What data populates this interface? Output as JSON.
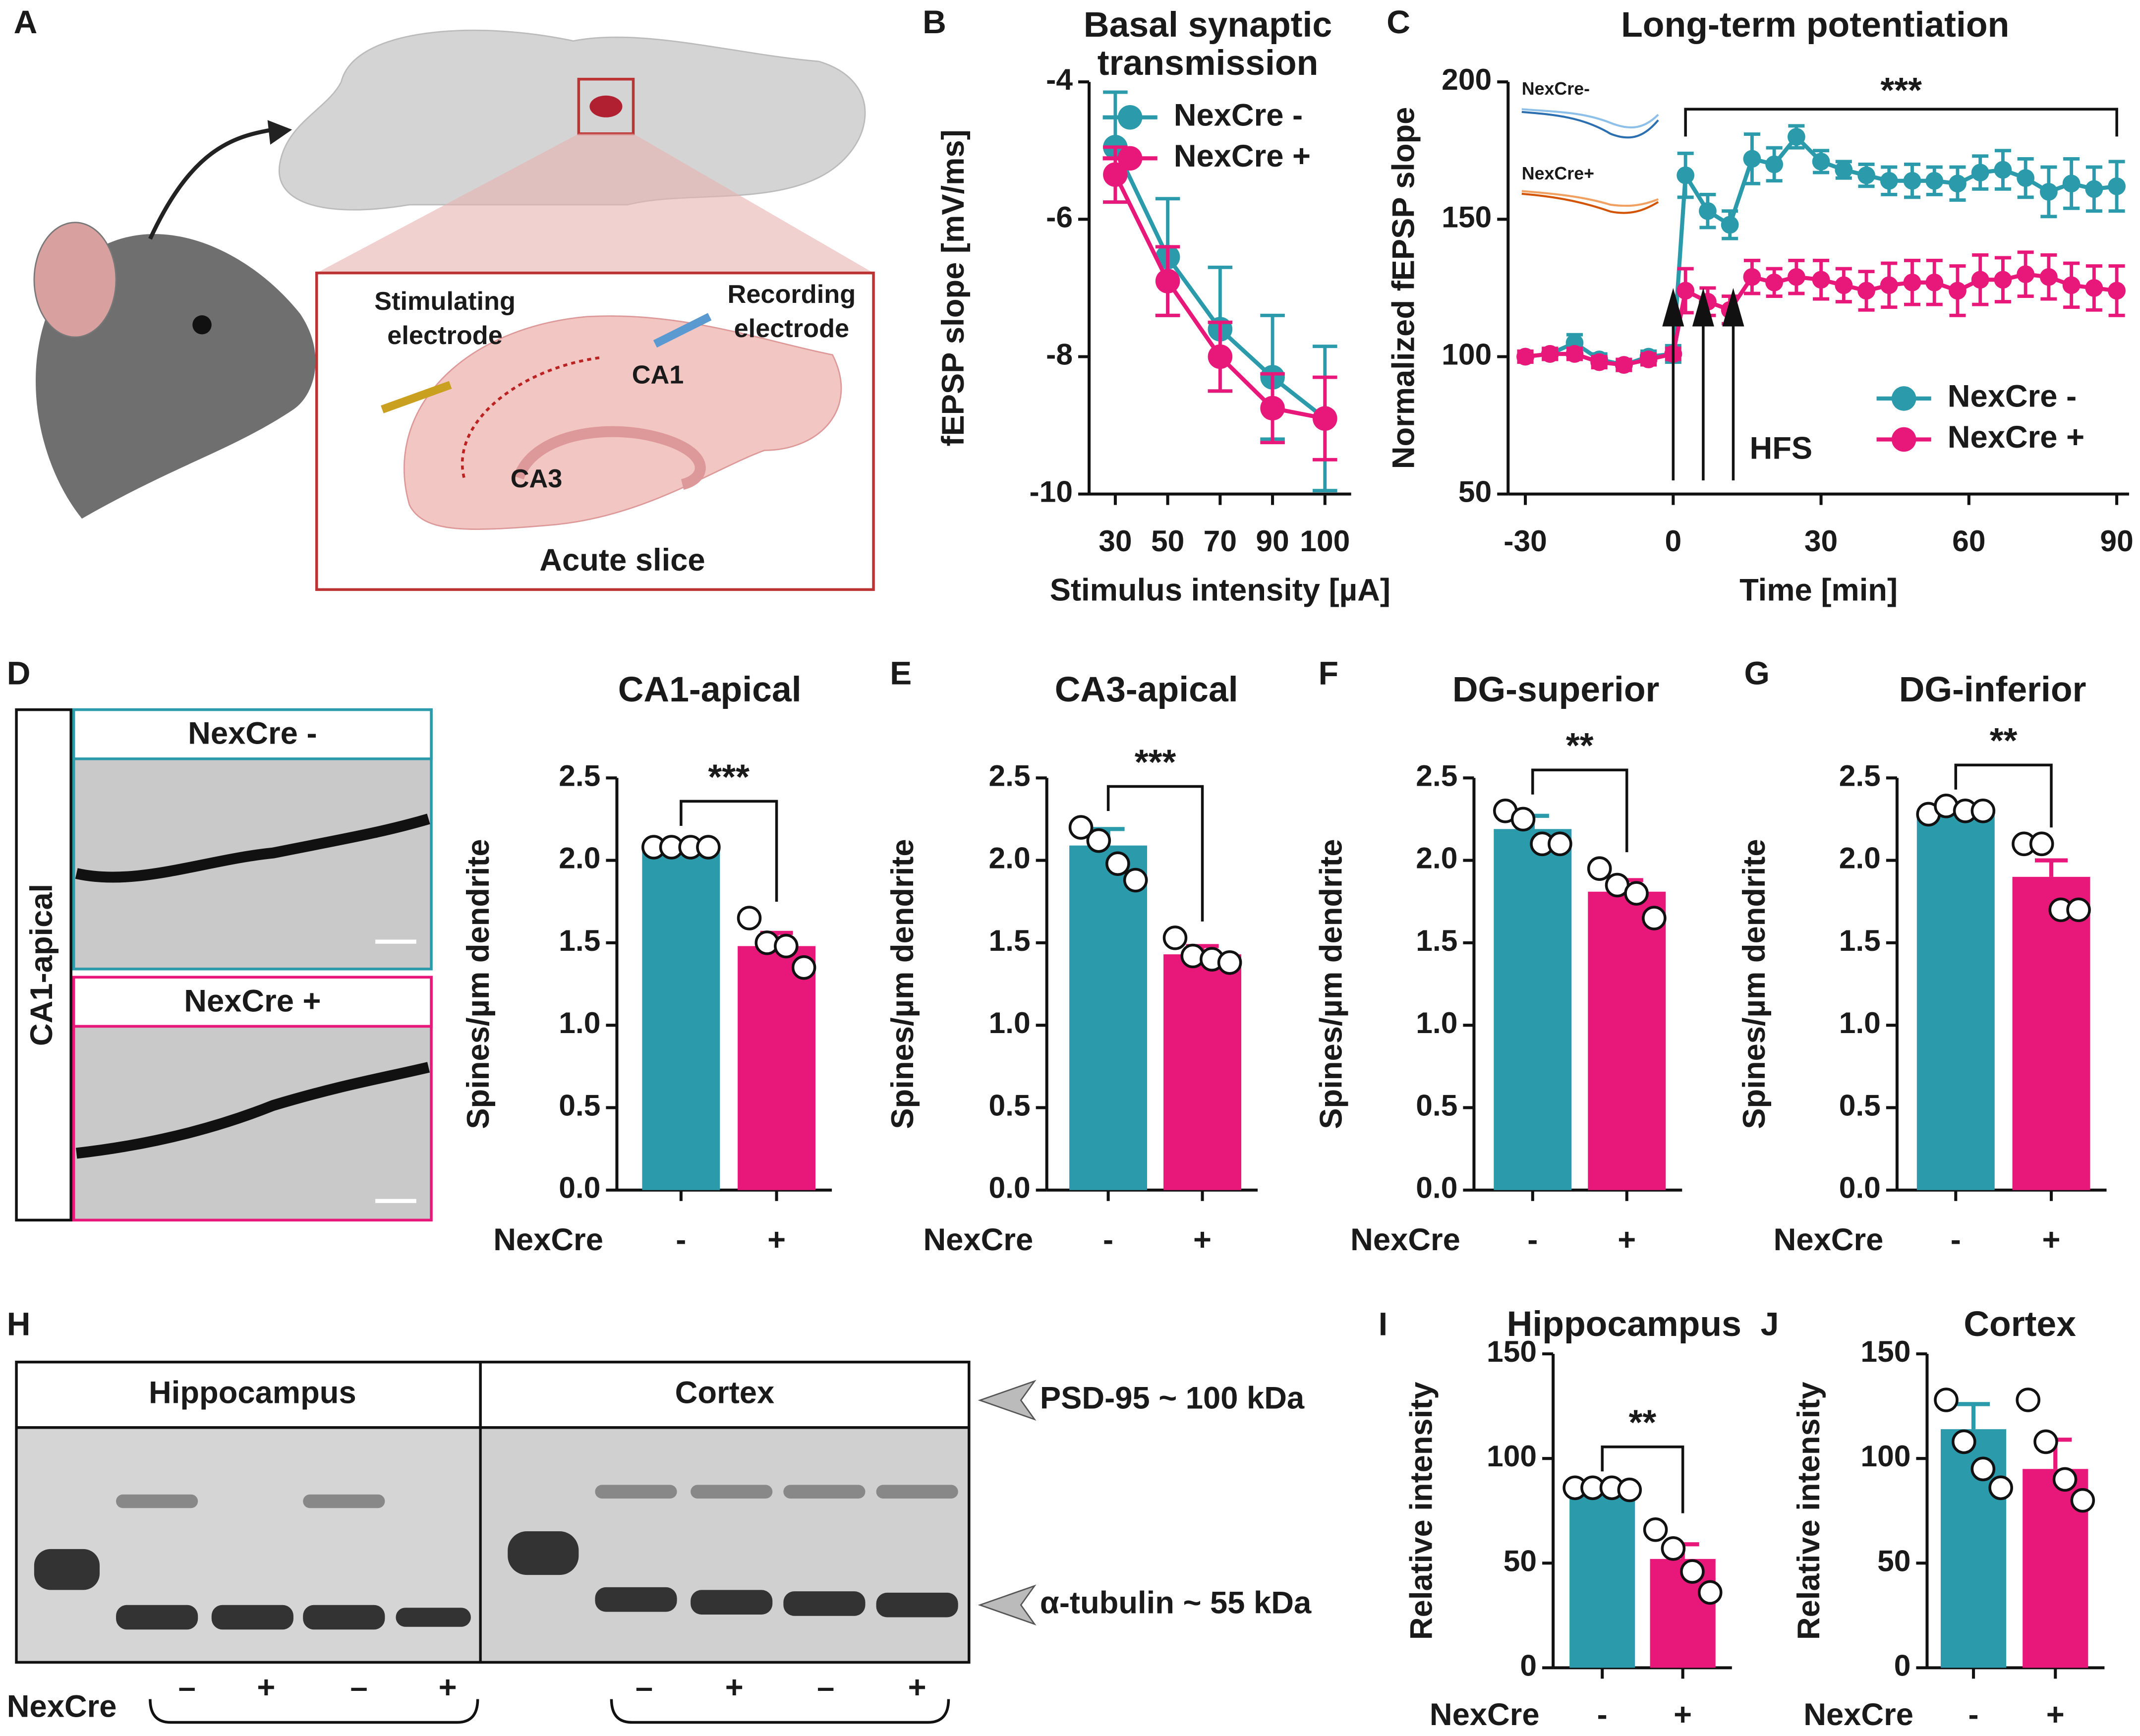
{
  "panel_labels": [
    "A",
    "B",
    "C",
    "D",
    "E",
    "F",
    "G",
    "H",
    "I",
    "J"
  ],
  "illustration": {
    "stimulating": [
      "Stimulating",
      "electrode"
    ],
    "recording": [
      "Recording",
      "electrode"
    ],
    "ca1": "CA1",
    "ca3": "CA3",
    "slice": "Acute slice"
  },
  "micrographs": {
    "side_label": "CA1-apical",
    "top": "NexCre -",
    "bottom": "NexCre +"
  },
  "blot": {
    "regions": [
      "Hippocampus",
      "Cortex"
    ],
    "markers": [
      "PSD-95  ~ 100 kDa",
      "α-tubulin ~ 55 kDa"
    ],
    "row_label": "NexCre",
    "lanes": [
      "–",
      "+",
      "–",
      "+",
      "–",
      "+",
      "–",
      "+"
    ]
  },
  "chart_data": [
    {
      "type": "line",
      "title": [
        "Basal synaptic",
        "transmission"
      ],
      "xlabel": "Stimulus intensity [µA]",
      "ylabel": "fEPSP slope [mV/ms]",
      "categories": [
        "30",
        "50",
        "70",
        "90",
        "100"
      ],
      "series": [
        {
          "name": "NexCre -",
          "color": "#2b9aab",
          "values": [
            -4.95,
            -6.55,
            -7.6,
            -8.3,
            -8.9
          ],
          "errors": [
            0.8,
            0.85,
            0.9,
            0.9,
            1.05
          ]
        },
        {
          "name": "NexCre +",
          "color": "#e8177a",
          "values": [
            -5.35,
            -6.9,
            -8.0,
            -8.75,
            -8.9
          ],
          "errors": [
            0.4,
            0.5,
            0.5,
            0.5,
            0.6
          ]
        }
      ],
      "ylim": [
        -10,
        -4
      ],
      "yticks": [
        -4,
        -6,
        -8,
        -10
      ],
      "legend": "upper right"
    },
    {
      "type": "line",
      "title": "Long-term potentiation",
      "xlabel": "Time [min]",
      "ylabel": "Normalized fEPSP slope",
      "x": [
        -30,
        -25,
        -20,
        -15,
        -10,
        -5,
        0,
        2.5,
        7,
        11.5,
        16,
        20.5,
        25,
        30,
        34.6,
        39.2,
        43.8,
        48.5,
        53,
        57.7,
        62.3,
        66.9,
        71.5,
        76.2,
        80.8,
        85.4,
        90
      ],
      "xlim": [
        -33.5,
        92.5
      ],
      "xticks": [
        -30,
        0,
        30,
        60,
        90
      ],
      "ylim": [
        50,
        200
      ],
      "yticks": [
        50,
        100,
        150,
        200
      ],
      "series": [
        {
          "name": "NexCre -",
          "color": "#2b9aab",
          "values": [
            100,
            101,
            105,
            99,
            97,
            100,
            101,
            166,
            153,
            148,
            172,
            170,
            180,
            171,
            168,
            166,
            164,
            164,
            164,
            163,
            167,
            168,
            165,
            160,
            163,
            161,
            162
          ],
          "errors": [
            2,
            2,
            3,
            2,
            2,
            2,
            3,
            8,
            6,
            5,
            9,
            6,
            4,
            4,
            3,
            4,
            5,
            6,
            5,
            6,
            6,
            7,
            7,
            9,
            9,
            8,
            9
          ]
        },
        {
          "name": "NexCre +",
          "color": "#e8177a",
          "values": [
            100,
            101,
            101,
            98,
            97,
            99,
            101,
            124,
            120,
            117,
            129,
            127,
            129,
            128,
            126,
            124,
            126,
            127,
            127,
            124,
            128,
            128,
            130,
            129,
            126,
            125,
            124
          ],
          "errors": [
            2,
            2,
            2,
            2,
            2,
            2,
            2,
            8,
            5,
            5,
            6,
            5,
            6,
            7,
            6,
            7,
            8,
            8,
            8,
            9,
            9,
            8,
            8,
            8,
            8,
            8,
            9
          ]
        }
      ],
      "legend": "lower right",
      "annotations": {
        "significance": "***",
        "stimulus": "HFS",
        "inset_labels": [
          "NexCre-",
          "NexCre+"
        ]
      }
    },
    {
      "type": "bar",
      "title": "CA1-apical",
      "ylabel": "Spines/µm dendrite",
      "xlabel": "NexCre",
      "categories": [
        "-",
        "+"
      ],
      "values": [
        2.08,
        1.48
      ],
      "errors": [
        0.03,
        0.08
      ],
      "colors": [
        "#2b9aab",
        "#e8177a"
      ],
      "points": [
        [
          2.08,
          2.08,
          2.08,
          2.08
        ],
        [
          1.65,
          1.5,
          1.48,
          1.35
        ]
      ],
      "ylim": [
        0,
        2.5
      ],
      "yticks": [
        {
          "value": 0,
          "label": "0.0"
        },
        0.5,
        {
          "value": 1,
          "label": "1.0"
        },
        1.5,
        {
          "value": 2,
          "label": "2.0"
        },
        2.5
      ],
      "annotation": "***"
    },
    {
      "type": "bar",
      "title": "CA3-apical",
      "ylabel": "Spines/µm dendrite",
      "xlabel": "NexCre",
      "categories": [
        "-",
        "+"
      ],
      "values": [
        2.09,
        1.43
      ],
      "errors": [
        0.1,
        0.05
      ],
      "colors": [
        "#2b9aab",
        "#e8177a"
      ],
      "points": [
        [
          2.2,
          2.12,
          1.98,
          1.88
        ],
        [
          1.53,
          1.42,
          1.4,
          1.38
        ]
      ],
      "ylim": [
        0,
        2.5
      ],
      "yticks": [
        {
          "value": 0,
          "label": "0.0"
        },
        0.5,
        {
          "value": 1,
          "label": "1.0"
        },
        1.5,
        {
          "value": 2,
          "label": "2.0"
        },
        2.5
      ],
      "annotation": "***"
    },
    {
      "type": "bar",
      "title": "DG-superior",
      "ylabel": "Spines/µm dendrite",
      "xlabel": "NexCre",
      "categories": [
        "-",
        "+"
      ],
      "values": [
        2.19,
        1.81
      ],
      "errors": [
        0.08,
        0.07
      ],
      "colors": [
        "#2b9aab",
        "#e8177a"
      ],
      "points": [
        [
          2.3,
          2.25,
          2.1,
          2.1
        ],
        [
          1.95,
          1.85,
          1.8,
          1.65
        ]
      ],
      "ylim": [
        0,
        2.5
      ],
      "yticks": [
        {
          "value": 0,
          "label": "0.0"
        },
        0.5,
        {
          "value": 1,
          "label": "1.0"
        },
        1.5,
        {
          "value": 2,
          "label": "2.0"
        },
        2.5
      ],
      "annotation": "**"
    },
    {
      "type": "bar",
      "title": "DG-inferior",
      "ylabel": "Spines/µm dendrite",
      "xlabel": "NexCre",
      "categories": [
        "-",
        "+"
      ],
      "values": [
        2.3,
        1.9
      ],
      "errors": [
        0.03,
        0.1
      ],
      "colors": [
        "#2b9aab",
        "#e8177a"
      ],
      "points": [
        [
          2.28,
          2.33,
          2.3,
          2.3
        ],
        [
          2.1,
          2.1,
          1.7,
          1.7
        ]
      ],
      "ylim": [
        0,
        2.5
      ],
      "yticks": [
        {
          "value": 0,
          "label": "0.0"
        },
        0.5,
        {
          "value": 1,
          "label": "1.0"
        },
        1.5,
        {
          "value": 2,
          "label": "2.0"
        },
        2.5
      ],
      "annotation": "**"
    },
    {
      "type": "bar",
      "title": "Hippocampus",
      "ylabel": "Relative intensity",
      "xlabel": "NexCre",
      "categories": [
        "-",
        "+"
      ],
      "values": [
        85,
        52
      ],
      "errors": [
        1,
        7
      ],
      "colors": [
        "#2b9aab",
        "#e8177a"
      ],
      "points": [
        [
          86,
          86,
          86,
          85
        ],
        [
          66,
          57,
          46,
          36
        ]
      ],
      "ylim": [
        0,
        150
      ],
      "yticks": [
        0,
        50,
        100,
        150
      ],
      "annotation": "**"
    },
    {
      "type": "bar",
      "title": "Cortex",
      "ylabel": "Relative intensity",
      "xlabel": "NexCre",
      "categories": [
        "-",
        "+"
      ],
      "values": [
        114,
        95
      ],
      "errors": [
        12,
        14
      ],
      "colors": [
        "#2b9aab",
        "#e8177a"
      ],
      "points": [
        [
          128,
          108,
          95,
          86
        ],
        [
          128,
          108,
          90,
          80
        ]
      ],
      "ylim": [
        0,
        150
      ],
      "yticks": [
        0,
        50,
        100,
        150
      ]
    }
  ]
}
